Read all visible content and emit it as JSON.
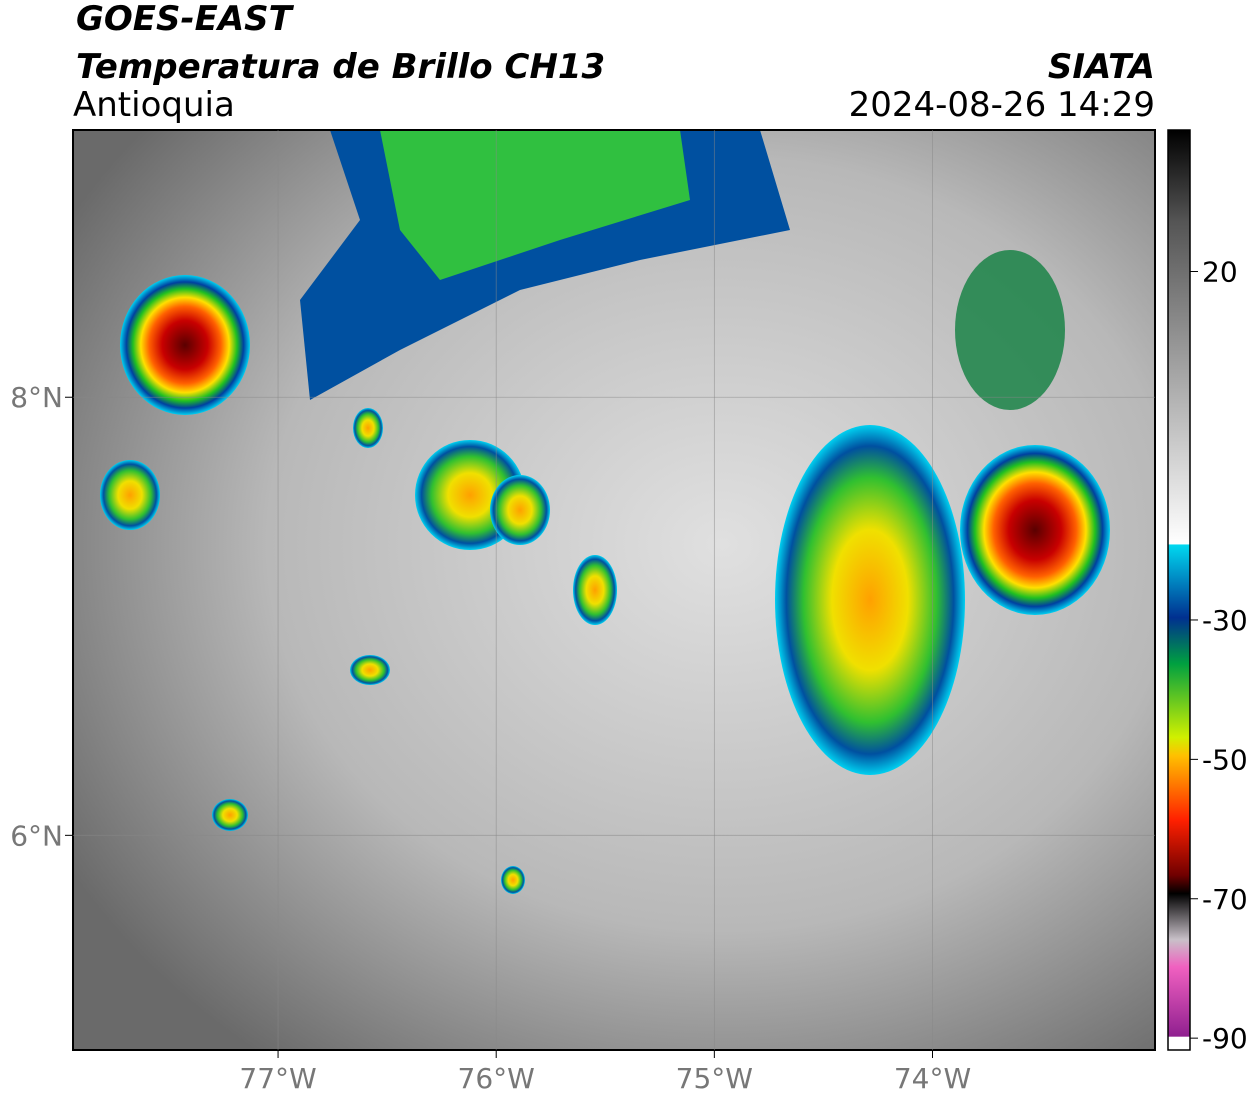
{
  "header": {
    "title": "GOES-EAST",
    "subtitle": "Temperatura de Brillo CH13",
    "region": "Antioquia",
    "source": "SIATA",
    "datetime": "2024-08-26 14:29"
  },
  "map": {
    "xlim": [
      -77.94,
      -72.98
    ],
    "ylim": [
      5.02,
      9.22
    ],
    "xticks": [
      {
        "value": -77,
        "label": "77°W"
      },
      {
        "value": -76,
        "label": "76°W"
      },
      {
        "value": -75,
        "label": "75°W"
      },
      {
        "value": -74,
        "label": "74°W"
      }
    ],
    "yticks": [
      {
        "value": 8,
        "label": "8°N"
      },
      {
        "value": 6,
        "label": "6°N"
      }
    ]
  },
  "colorbar": {
    "lim": [
      -91.7,
      40.3
    ],
    "ticks": [
      20,
      -30,
      -50,
      -70,
      -90
    ]
  }
}
